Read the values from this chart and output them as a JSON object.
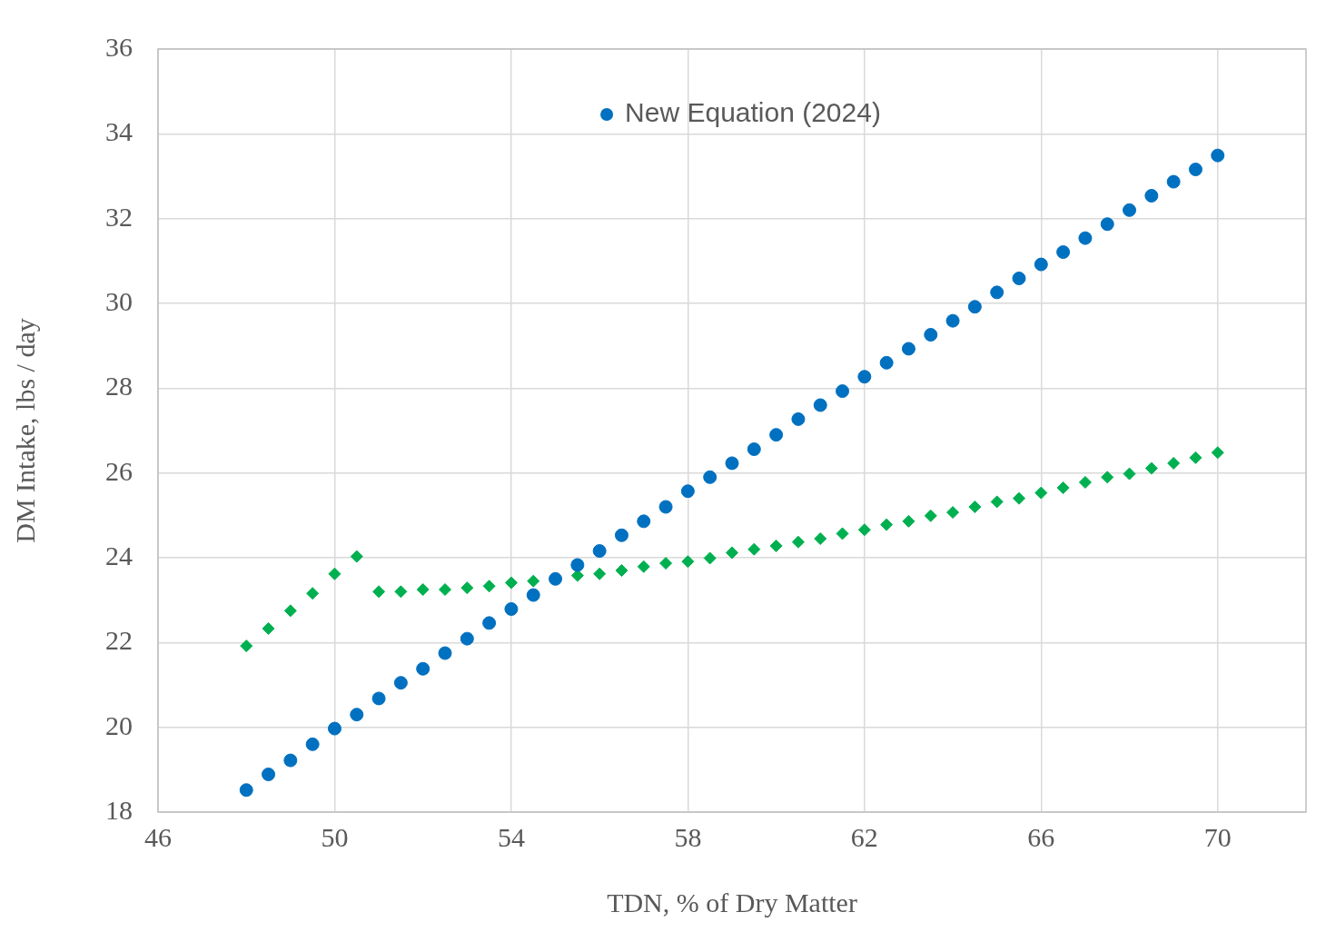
{
  "chart_data": {
    "type": "scatter",
    "xlabel": "TDN, % of Dry Matter",
    "ylabel": "DM Intake, lbs / day",
    "xlim": [
      46,
      72
    ],
    "xticks": [
      46,
      50,
      54,
      58,
      62,
      66,
      70
    ],
    "ylim": [
      18,
      36
    ],
    "yticks": [
      18,
      20,
      22,
      24,
      26,
      28,
      30,
      32,
      34,
      36
    ],
    "grid": true,
    "legend": "top",
    "series": [
      {
        "name": "New Equation (2024)",
        "color": "#0070c0",
        "marker": "circle",
        "x": [
          48,
          48.5,
          49,
          49.5,
          50,
          50.5,
          51,
          51.5,
          52,
          52.5,
          53,
          53.5,
          54,
          54.5,
          55,
          55.5,
          56,
          56.5,
          57,
          57.5,
          58,
          58.5,
          59,
          59.5,
          60,
          60.5,
          61,
          61.5,
          62,
          62.5,
          63,
          63.5,
          64,
          64.5,
          65,
          65.5,
          66,
          66.5,
          67,
          67.5,
          68,
          68.5,
          69,
          69.5,
          70
        ],
        "values": [
          18.52,
          18.89,
          19.22,
          19.6,
          19.97,
          20.3,
          20.68,
          21.05,
          21.38,
          21.75,
          22.09,
          22.46,
          22.79,
          23.12,
          23.5,
          23.83,
          24.16,
          24.53,
          24.86,
          25.2,
          25.57,
          25.9,
          26.23,
          26.56,
          26.9,
          27.27,
          27.6,
          27.93,
          28.27,
          28.6,
          28.93,
          29.26,
          29.59,
          29.92,
          30.26,
          30.59,
          30.92,
          31.21,
          31.54,
          31.87,
          32.2,
          32.54,
          32.87,
          33.16,
          33.49
        ]
      },
      {
        "color": "#00b050",
        "marker": "diamond",
        "x": [
          48,
          48.5,
          49,
          49.5,
          50,
          50.5,
          51,
          51.5,
          52,
          52.5,
          53,
          53.5,
          54,
          54.5,
          55,
          55.5,
          56,
          56.5,
          57,
          57.5,
          58,
          58.5,
          59,
          59.5,
          60,
          60.5,
          61,
          61.5,
          62,
          62.5,
          63,
          63.5,
          64,
          64.5,
          65,
          65.5,
          66,
          66.5,
          67,
          67.5,
          68,
          68.5,
          69,
          69.5,
          70
        ],
        "values": [
          21.92,
          22.33,
          22.75,
          23.16,
          23.62,
          24.03,
          23.2,
          23.2,
          23.25,
          23.25,
          23.29,
          23.33,
          23.41,
          23.45,
          null,
          23.58,
          23.62,
          23.7,
          23.79,
          23.87,
          23.91,
          23.99,
          24.12,
          24.2,
          24.28,
          24.37,
          24.45,
          24.57,
          24.66,
          24.78,
          24.86,
          24.99,
          25.07,
          25.2,
          25.32,
          25.4,
          25.53,
          25.65,
          25.78,
          25.9,
          25.98,
          26.11,
          26.23,
          26.36,
          26.48
        ]
      }
    ]
  }
}
